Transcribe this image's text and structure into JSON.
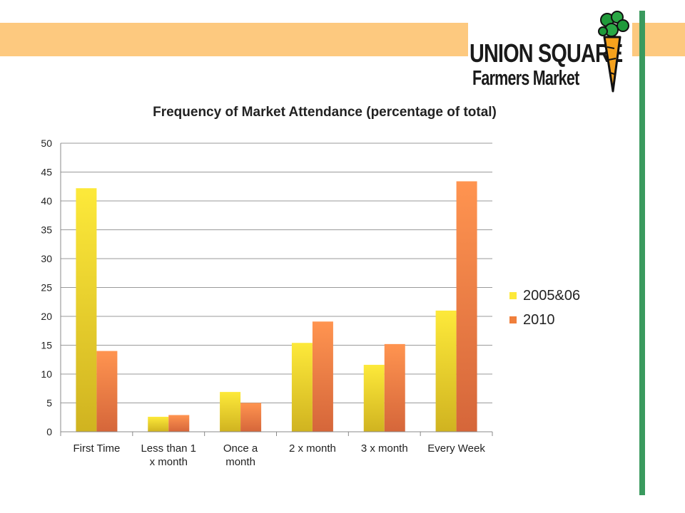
{
  "colors": {
    "band": "#fdc97f",
    "accent_green": "#3a9a5e",
    "series_2005_top": "#fde93a",
    "series_2005_bottom": "#d0b320",
    "series_2010_top": "#ff9450",
    "series_2010_bottom": "#d5663a"
  },
  "logo": {
    "line1": "UNION SQUARE",
    "line2": "Farmers Market",
    "icon": "carrot-icon"
  },
  "chart_data": {
    "type": "bar",
    "title": "Frequency of Market Attendance (percentage of total)",
    "xlabel": "",
    "ylabel": "",
    "categories": [
      [
        "First Time"
      ],
      [
        "Less than 1",
        "x month"
      ],
      [
        "Once a",
        "month"
      ],
      [
        "2 x month"
      ],
      [
        "3 x month"
      ],
      [
        "Every Week"
      ]
    ],
    "series": [
      {
        "name": "2005&06",
        "values": [
          42.2,
          2.6,
          6.9,
          15.4,
          11.6,
          21.0
        ]
      },
      {
        "name": "2010",
        "values": [
          14.0,
          2.9,
          5.0,
          19.1,
          15.2,
          43.4
        ]
      }
    ],
    "ylim": [
      0,
      50
    ],
    "yticks": [
      0,
      5,
      10,
      15,
      20,
      25,
      30,
      35,
      40,
      45,
      50
    ],
    "grid": true,
    "legend_position": "right"
  }
}
